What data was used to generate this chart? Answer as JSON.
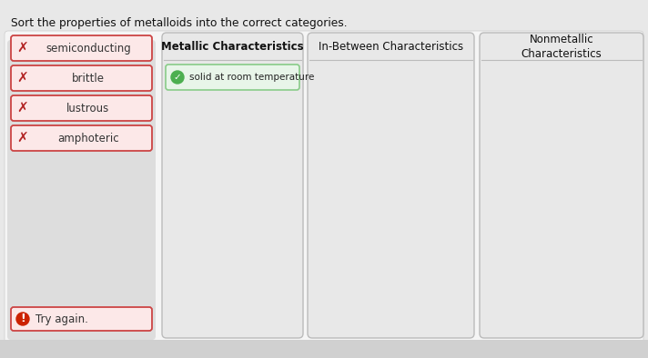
{
  "title": "Sort the properties of metalloids into the correct categories.",
  "page_bg": "#e8e8e8",
  "content_bg": "#f0f0f0",
  "left_items": [
    {
      "label": "semiconducting",
      "x_color": "#b22222"
    },
    {
      "label": "brittle",
      "x_color": "#b22222"
    },
    {
      "label": "lustrous",
      "x_color": "#b22222"
    },
    {
      "label": "amphoteric",
      "x_color": "#b22222"
    }
  ],
  "columns": [
    {
      "header": "Metallic Characteristics",
      "header_bold": true,
      "items": [
        {
          "label": "solid at room temperature",
          "bg": "#e8f5e9",
          "border_color": "#88cc88",
          "check_color": "#4caf50"
        }
      ],
      "border_color": "#bbbbbb",
      "bg": "#e8e8e8"
    },
    {
      "header": "In-Between Characteristics",
      "header_bold": false,
      "items": [],
      "border_color": "#bbbbbb",
      "bg": "#e8e8e8"
    },
    {
      "header": "Nonmetallic\nCharacteristics",
      "header_bold": false,
      "items": [],
      "border_color": "#bbbbbb",
      "bg": "#e8e8e8"
    }
  ],
  "try_again": {
    "label": "Try again.",
    "icon_color": "#cc2200",
    "bg": "#fce8e8",
    "border_color": "#cc4444"
  },
  "left_item_bg": "#fce8e8",
  "left_item_border": "#cc4444",
  "left_panel_bg": "#dddddd"
}
